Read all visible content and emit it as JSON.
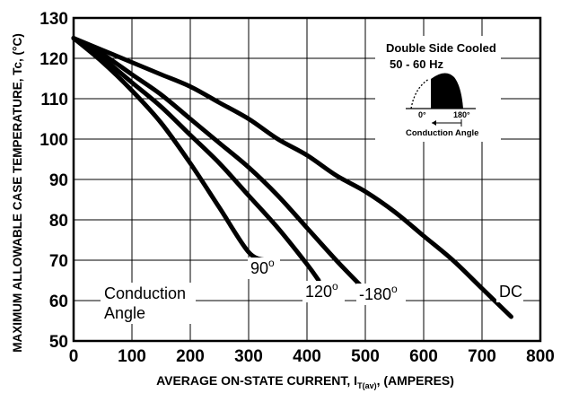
{
  "chart_data": {
    "type": "line",
    "title": "",
    "xlabel": "AVERAGE ON-STATE CURRENT, I",
    "xlabel_subscript": "T(av)",
    "xlabel_suffix": ", (AMPERES)",
    "ylabel": "MAXIMUM ALLOWABLE CASE TEMPERATURE, Tc, (°C)",
    "xlim": [
      0,
      800
    ],
    "ylim": [
      50,
      130
    ],
    "x_ticks": [
      0,
      100,
      200,
      300,
      400,
      500,
      600,
      700,
      800
    ],
    "y_ticks": [
      50,
      60,
      70,
      80,
      90,
      100,
      110,
      120,
      130
    ],
    "grid": true,
    "series": [
      {
        "name": "90°",
        "label": "90",
        "x": [
          0,
          50,
          100,
          150,
          200,
          250,
          300,
          330
        ],
        "y": [
          125,
          119,
          112,
          104,
          94,
          83,
          72,
          70
        ]
      },
      {
        "name": "120°",
        "label": "120",
        "x": [
          0,
          50,
          100,
          150,
          200,
          250,
          300,
          350,
          400,
          420
        ],
        "y": [
          125,
          120,
          114,
          108,
          101,
          94,
          86,
          78,
          69,
          65
        ]
      },
      {
        "name": "180°",
        "label": "180",
        "x": [
          0,
          50,
          100,
          150,
          200,
          250,
          300,
          350,
          400,
          450,
          490
        ],
        "y": [
          125,
          121,
          116,
          111,
          105,
          99,
          93,
          86,
          78,
          70,
          64
        ]
      },
      {
        "name": "DC",
        "label": "DC",
        "x": [
          0,
          50,
          100,
          150,
          200,
          250,
          300,
          350,
          400,
          450,
          500,
          550,
          600,
          650,
          700,
          750
        ],
        "y": [
          125,
          122,
          119,
          116,
          113,
          109,
          105,
          100,
          96,
          91,
          87,
          82,
          76,
          70,
          63,
          56
        ]
      }
    ],
    "degree_mark": "o",
    "annotations": {
      "conduction_line1": "Conduction",
      "conduction_line2": "Angle",
      "inset_title_line1": "Double Side Cooled",
      "inset_title_line2": "50 - 60 Hz",
      "inset_zero": "0°",
      "inset_180": "180°",
      "inset_caption": "Conduction Angle"
    }
  }
}
